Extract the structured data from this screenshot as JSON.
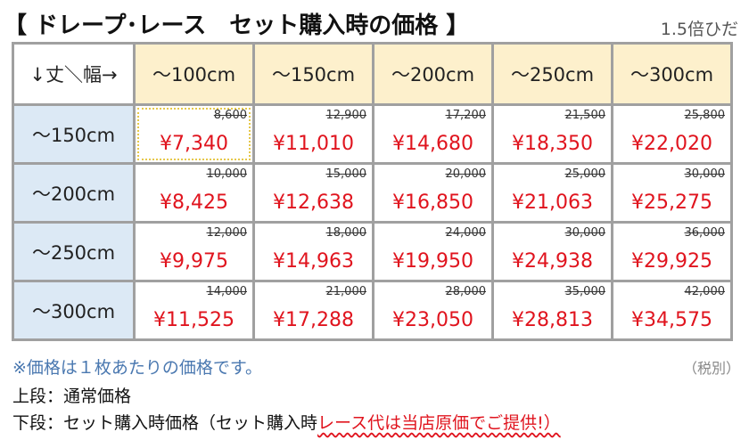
{
  "header": {
    "title": "【 ドレープ･レース　セット購入時の価格 】",
    "note": "1.5倍ひだ"
  },
  "table": {
    "corner": "↓丈＼幅→",
    "columns": [
      "～100cm",
      "～150cm",
      "～200cm",
      "～250cm",
      "～300cm"
    ],
    "rows": [
      {
        "label": "～150cm",
        "cells": [
          {
            "regular": "8,600",
            "set": "¥7,340"
          },
          {
            "regular": "12,900",
            "set": "¥11,010"
          },
          {
            "regular": "17,200",
            "set": "¥14,680"
          },
          {
            "regular": "21,500",
            "set": "¥18,350"
          },
          {
            "regular": "25,800",
            "set": "¥22,020"
          }
        ]
      },
      {
        "label": "～200cm",
        "cells": [
          {
            "regular": "10,000",
            "set": "¥8,425"
          },
          {
            "regular": "15,000",
            "set": "¥12,638"
          },
          {
            "regular": "20,000",
            "set": "¥16,850"
          },
          {
            "regular": "25,000",
            "set": "¥21,063"
          },
          {
            "regular": "30,000",
            "set": "¥25,275"
          }
        ]
      },
      {
        "label": "～250cm",
        "cells": [
          {
            "regular": "12,000",
            "set": "¥9,975"
          },
          {
            "regular": "18,000",
            "set": "¥14,963"
          },
          {
            "regular": "24,000",
            "set": "¥19,950"
          },
          {
            "regular": "30,000",
            "set": "¥24,938"
          },
          {
            "regular": "36,000",
            "set": "¥29,925"
          }
        ]
      },
      {
        "label": "～300cm",
        "cells": [
          {
            "regular": "14,000",
            "set": "¥11,525"
          },
          {
            "regular": "21,000",
            "set": "¥17,288"
          },
          {
            "regular": "28,000",
            "set": "¥23,050"
          },
          {
            "regular": "35,000",
            "set": "¥28,813"
          },
          {
            "regular": "42,000",
            "set": "¥34,575"
          }
        ]
      }
    ]
  },
  "footer": {
    "note": "※価格は１枚あたりの価格です。",
    "tax": "（税別）",
    "line1": "上段：通常価格",
    "line2a": "下段：セット購入時価格（セット購入時",
    "line2b": "レース代は当店原価でご提供!）"
  }
}
